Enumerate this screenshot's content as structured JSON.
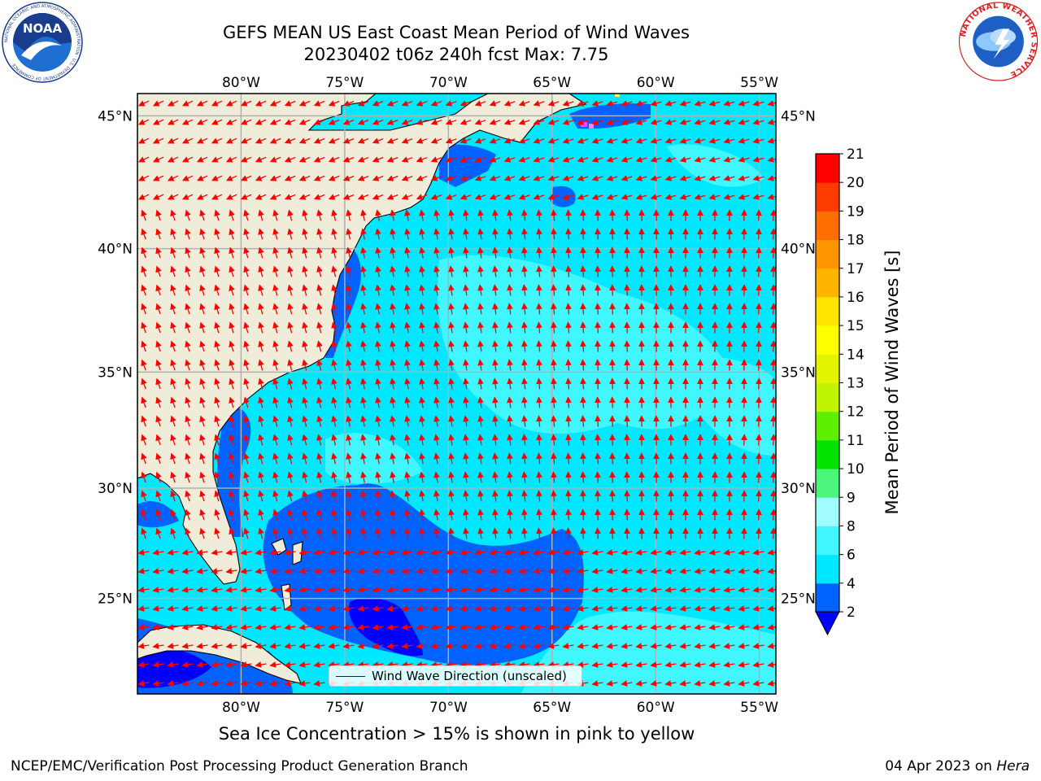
{
  "title": {
    "line1": "GEFS MEAN US East Coast Mean Period of Wind Waves",
    "line2": "20230402 t06z 240h fcst   Max: 7.75"
  },
  "map": {
    "lon_labels": [
      "80°W",
      "75°W",
      "70°W",
      "65°W",
      "60°W",
      "55°W"
    ],
    "lon_values": [
      -80,
      -75,
      -70,
      -65,
      -60,
      -55
    ],
    "lat_labels": [
      "45°N",
      "40°N",
      "35°N",
      "30°N",
      "25°N"
    ],
    "lat_values": [
      45,
      40,
      35,
      30,
      25
    ],
    "extent": {
      "lon_min": -85,
      "lon_max": -54.2,
      "lat_min": 20.5,
      "lat_max": 45.8
    },
    "colors": {
      "land": "#efedd9",
      "coast": "#000000",
      "grid": "#b0b0b0",
      "arrow": "#ff0000",
      "ice": "#ff44ff"
    }
  },
  "colorbar": {
    "title": "Mean Period of Wind Waves [s]",
    "ticks": [
      "2",
      "4",
      "6",
      "8",
      "9",
      "10",
      "11",
      "12",
      "13",
      "14",
      "15",
      "16",
      "17",
      "18",
      "19",
      "20",
      "21"
    ],
    "colors": [
      "#0062ff",
      "#00e8ff",
      "#40f6ff",
      "#a0fcff",
      "#4cf67c",
      "#00e400",
      "#5ef000",
      "#c0f400",
      "#e4f400",
      "#ffff00",
      "#ffe600",
      "#ffb400",
      "#ff9600",
      "#ff6e00",
      "#ff3c00",
      "#ff0000"
    ],
    "under_color": "#0000ff"
  },
  "legend": {
    "label": "Wind Wave Direction (unscaled)",
    "line_color": "#1a1a80"
  },
  "note": "Sea Ice Concentration > 15% is shown in pink to yellow",
  "footer": {
    "left": "NCEP/EMC/Verification Post Processing Product Generation Branch",
    "date": "04 Apr 2023 on ",
    "machine": "Hera"
  },
  "logos": {
    "noaa_text": "NOAA",
    "noaa_ring": "NATIONAL OCEANIC AND ATMOSPHERIC ADMINISTRATION · U.S. DEPARTMENT OF COMMERCE",
    "nws_ring": "NATIONAL WEATHER SERVICE"
  }
}
